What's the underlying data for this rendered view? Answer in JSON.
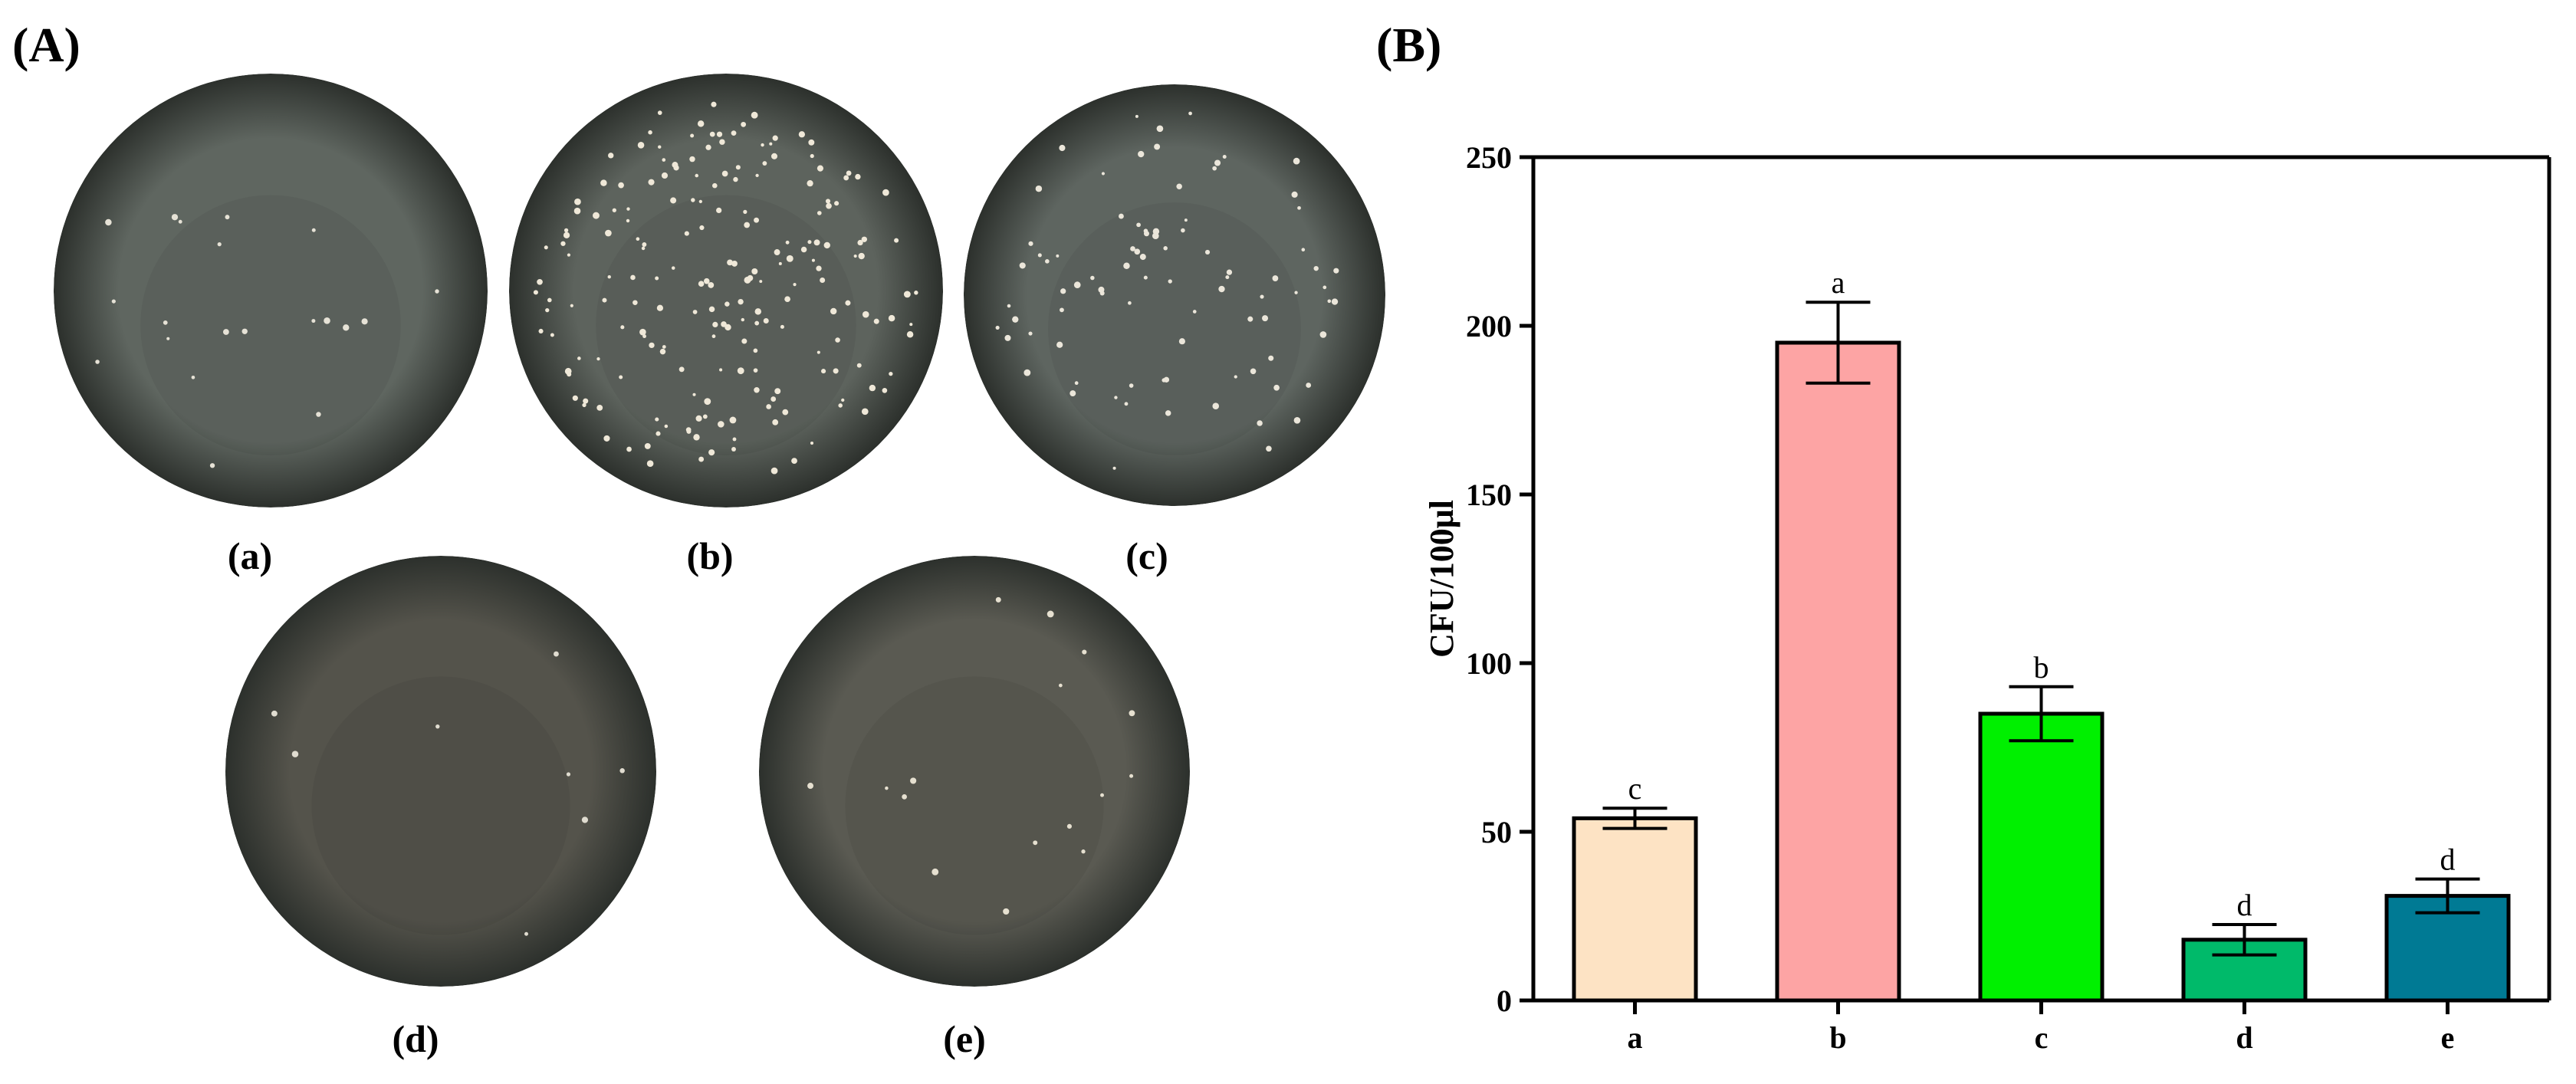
{
  "panels": {
    "A": {
      "label": "(A)"
    },
    "B": {
      "label": "(B)"
    }
  },
  "plates": [
    {
      "id": "a",
      "caption": "(a)",
      "colonies": 20,
      "colony_color": "#e6e2d6",
      "tint": "#5f6660"
    },
    {
      "id": "b",
      "caption": "(b)",
      "colonies": 195,
      "colony_color": "#efe8d8",
      "tint": "#5d635d"
    },
    {
      "id": "c",
      "caption": "(c)",
      "colonies": 85,
      "colony_color": "#ebe6da",
      "tint": "#5e6560"
    },
    {
      "id": "d",
      "caption": "(d)",
      "colonies": 8,
      "colony_color": "#e0dcd0",
      "tint": "#54534b"
    },
    {
      "id": "e",
      "caption": "(e)",
      "colonies": 16,
      "colony_color": "#e6e0d0",
      "tint": "#5a5a52"
    }
  ],
  "chart_data": {
    "type": "bar",
    "categories": [
      "a",
      "b",
      "c",
      "d",
      "e"
    ],
    "values": [
      54,
      195,
      85,
      18,
      31
    ],
    "errors": [
      3,
      12,
      8,
      4.5,
      5
    ],
    "significance_labels": [
      "c",
      "a",
      "b",
      "d",
      "d"
    ],
    "colors": [
      "#fde3c4",
      "#fda4a4",
      "#00f000",
      "#00ba6a",
      "#007a94"
    ],
    "ylabel": "CFU/100μl",
    "xlabel": "",
    "ylim": [
      0,
      250
    ],
    "yticks": [
      0,
      50,
      100,
      150,
      200,
      250
    ],
    "grid": false
  }
}
